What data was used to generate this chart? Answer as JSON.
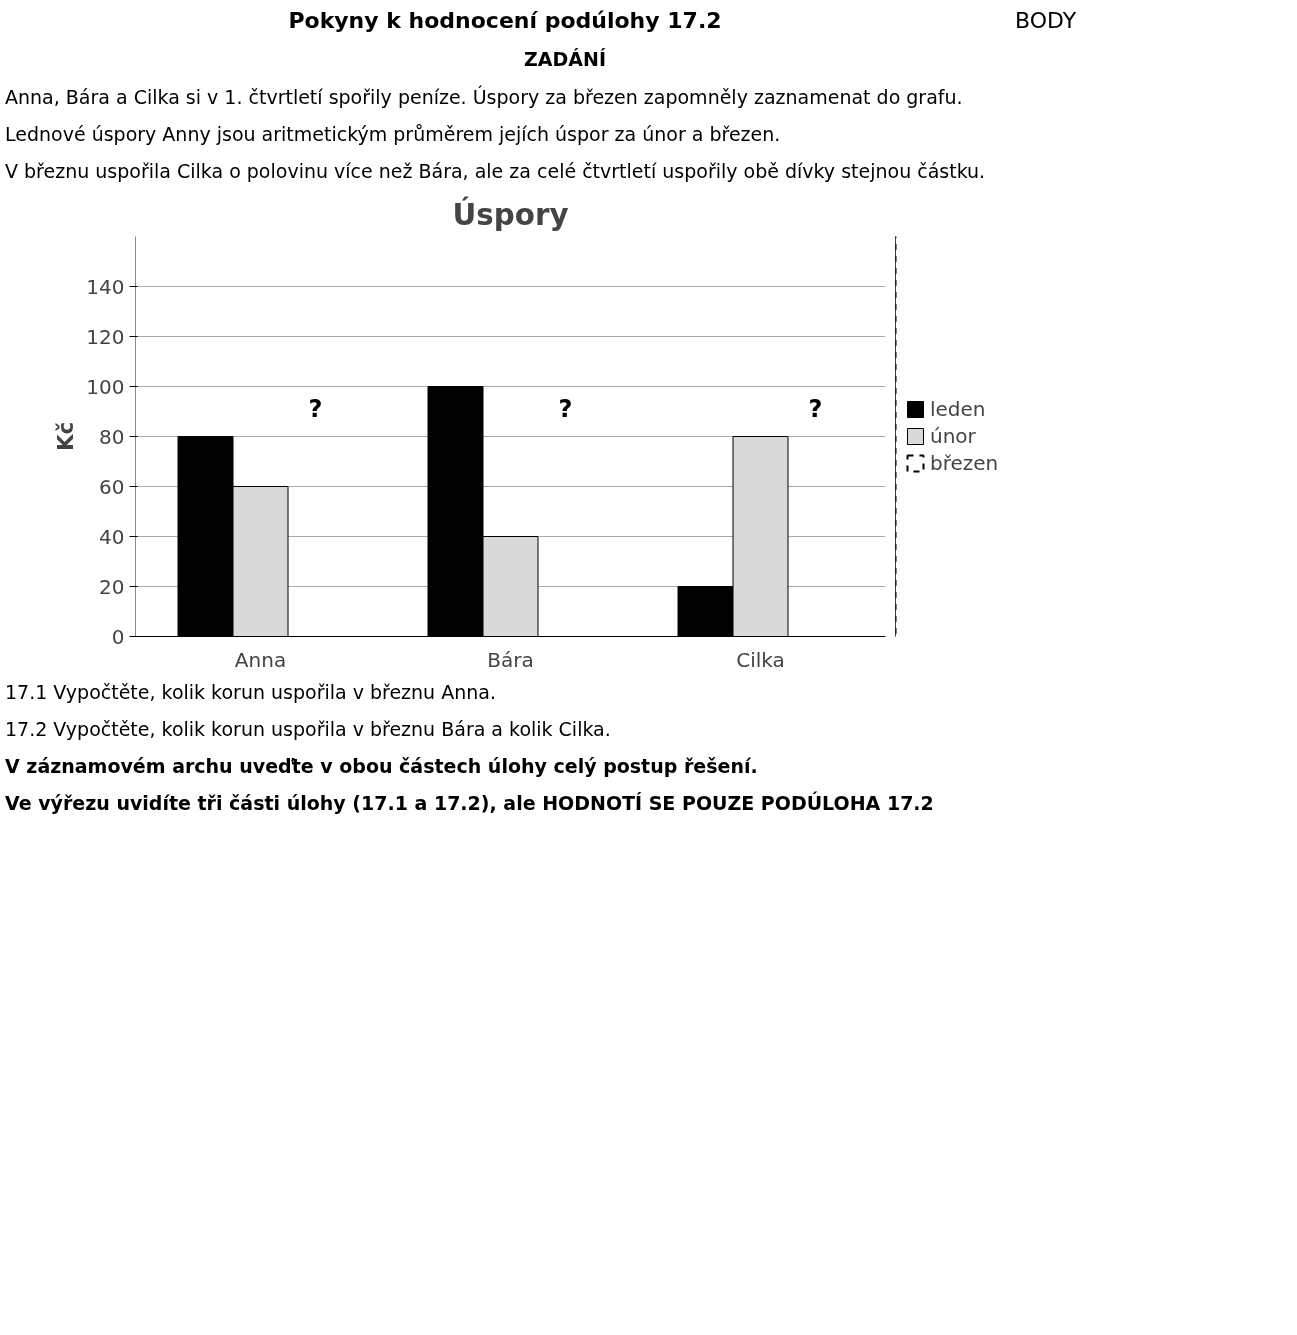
{
  "chart_data": {
    "type": "bar",
    "title": "Úspory",
    "ylabel": "Kč",
    "categories": [
      "Anna",
      "Bára",
      "Cilka"
    ],
    "series": [
      {
        "name": "leden",
        "color": "#000000",
        "values": [
          80,
          100,
          20
        ]
      },
      {
        "name": "únor",
        "color": "#d9d9d9",
        "values": [
          60,
          40,
          80
        ]
      },
      {
        "name": "březen",
        "color": "#000000",
        "values": [
          null,
          null,
          null
        ],
        "line_style": "dashed"
      }
    ],
    "ylim": [
      0,
      160
    ],
    "yticks": [
      0,
      20,
      40,
      60,
      80,
      100,
      120,
      140
    ],
    "grid": "y",
    "legend": "right",
    "annotations": [
      "Pokyny k hodnocení podúlohy 17.2",
      "BODY",
      "ZADÁNÍ",
      "Anna, Bára a Cilka si v 1. čtvrtletí spořily peníze. Úspory za březen zapomněly zaznamenat do grafu.",
      "Lednové úspory Anny jsou aritmetickým průměrem jejích úspor za únor a březen.",
      "V březnu uspořila Cilka o polovinu více než Bára, ale za celé čtvrtletí uspořily obě dívky stejnou částku.",
      "17.1 Vypočtěte, kolik korun uspořila v březnu Anna.",
      "17.2 Vypočtěte, kolik korun uspořila v březnu Bára a kolik Cilka.",
      "V záznamovém archu uveďte v obou částech úlohy celý postup řešení.",
      "Ve výřezu uvidíte tři části úlohy (17.1 a 17.2), ale HODNOTÍ SE POUZE PODÚLOHA 17.2",
      "?",
      "?",
      "?"
    ]
  }
}
